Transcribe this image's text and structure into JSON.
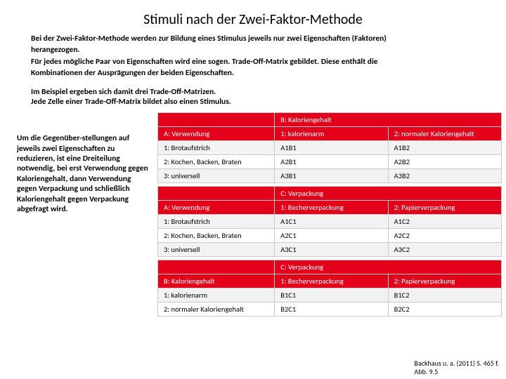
{
  "title": "Stimuli nach der Zwei-Faktor-Methode",
  "intro": {
    "p1a": "Bei der Zwei-Faktor-Methode werden zur Bildung eines Stimulus jeweils nur zwei Eigenschaften (Faktoren)",
    "p1b": "herangezogen.",
    "p2a": "Für jedes mögliche Paar von Eigenschaften wird eine sogen. Trade-Off-Matrix gebildet. Diese enthält die",
    "p2b": "Kombinationen der Ausprägungen der beiden Eigenschaften."
  },
  "mid": {
    "l1": "Im Beispiel ergeben sich damit drei Trade-Off-Matrizen.",
    "l2": "Jede Zelle einer Trade-Off-Matrix bildet also einen Stimulus."
  },
  "sidebar": "Um die Gegenüber-stellungen auf jeweils zwei Eigenschaften zu reduzieren, ist eine Dreiteilung notwendig, bei erst Verwendung gegen Kaloriengehalt, dann Verwendung gegen Verpackung und schließlich Kaloriengehalt gegen Verpackung abgefragt wird.",
  "t1": {
    "topright": "B: Kaloriengehalt",
    "h0": "A: Verwendung",
    "h1": "1: kalorienarm",
    "h2": "2: normaler Kaloriengehalt",
    "r1c0": "1: Brotaufstrich",
    "r1c1": "A1B1",
    "r1c2": "A1B2",
    "r2c0": "2: Kochen, Backen, Braten",
    "r2c1": "A2B1",
    "r2c2": "A2B2",
    "r3c0": "3: universell",
    "r3c1": "A3B1",
    "r3c2": "A3B2"
  },
  "t2": {
    "topright": "C: Verpackung",
    "h0": "A: Verwendung",
    "h1": "1: Becherverpackung",
    "h2": "2: Papierverpackung",
    "r1c0": "1: Brotaufstrich",
    "r1c1": "A1C1",
    "r1c2": "A1C2",
    "r2c0": "2: Kochen, Backen, Braten",
    "r2c1": "A2C1",
    "r2c2": "A2C2",
    "r3c0": "3: universell",
    "r3c1": "A3C1",
    "r3c2": "A3C2"
  },
  "t3": {
    "topright": "C: Verpackung",
    "h0": "B: Kaloriengehalt",
    "h1": "1: Becherverpackung",
    "h2": "2: Papierverpackung",
    "r1c0": "1: kalorienarm",
    "r1c1": "B1C1",
    "r1c2": "B1C2",
    "r2c0": "2: normaler Kaloriengehalt",
    "r2c1": "B2C1",
    "r2c2": "B2C2"
  },
  "citation": {
    "l1": "Backhaus u. a. (2011) S. 465 f.",
    "l2": "Abb. 9.5"
  },
  "colors": {
    "red": "#e2001a",
    "gray": "#f2f2f2",
    "border": "#c9c9c9",
    "bg": "#ffffff",
    "text": "#000000"
  }
}
